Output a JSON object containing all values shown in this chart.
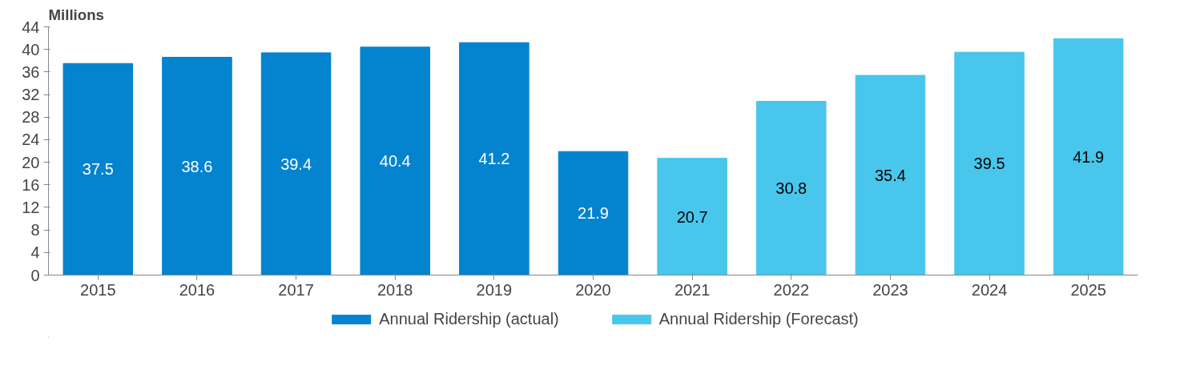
{
  "chart_data": {
    "type": "bar",
    "ylabel": "Millions",
    "categories": [
      "2015",
      "2016",
      "2017",
      "2018",
      "2019",
      "2020",
      "2021",
      "2022",
      "2023",
      "2024",
      "2025"
    ],
    "series": [
      {
        "name": "Annual Ridership (actual)",
        "color": "#0483cf",
        "values": [
          37.5,
          38.6,
          39.4,
          40.4,
          41.2,
          21.9,
          null,
          null,
          null,
          null,
          null
        ]
      },
      {
        "name": "Annual Ridership (Forecast)",
        "color": "#48c6ec",
        "values": [
          null,
          null,
          null,
          null,
          null,
          null,
          20.7,
          30.8,
          35.4,
          39.5,
          41.9
        ]
      }
    ],
    "ylim": [
      0,
      44
    ],
    "yticks": [
      0,
      4,
      8,
      12,
      16,
      20,
      24,
      28,
      32,
      36,
      40,
      44
    ],
    "grid": false,
    "legend": "bottom",
    "data_labels": true
  }
}
